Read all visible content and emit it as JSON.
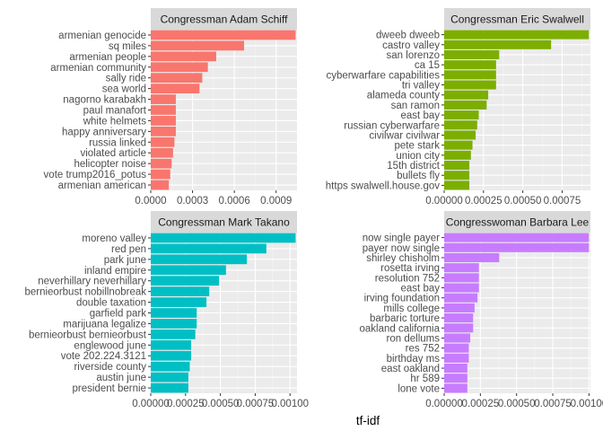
{
  "chart_data": {
    "type": "bar",
    "orientation": "horizontal",
    "facets": 4,
    "xlabel": "tf-idf",
    "grid": true,
    "panels": [
      {
        "title": "Congressman Adam Schiff",
        "color": "#F8766D",
        "xlim": [
          0,
          0.00105
        ],
        "ticks": [
          0,
          0.0003,
          0.0006,
          0.0009
        ],
        "tick_labels": [
          "0.0000",
          "0.0003",
          "0.0006",
          "0.0009"
        ],
        "categories": [
          "armenian genocide",
          "sq miles",
          "armenian people",
          "armenian community",
          "sally ride",
          "sea world",
          "nagorno karabakh",
          "paul manafort",
          "white helmets",
          "happy anniversary",
          "russia linked",
          "violated article",
          "helicopter noise",
          "vote trump2016_potus",
          "armenian american"
        ],
        "values": [
          0.00104,
          0.00067,
          0.00047,
          0.00041,
          0.00037,
          0.00035,
          0.00018,
          0.00018,
          0.00018,
          0.00018,
          0.00017,
          0.00016,
          0.00015,
          0.00014,
          0.00013
        ]
      },
      {
        "title": "Congressman Eric Swalwell",
        "color": "#7CAE00",
        "xlim": [
          0,
          0.00093
        ],
        "ticks": [
          0,
          0.00025,
          0.0005,
          0.00075
        ],
        "tick_labels": [
          "0.00000",
          "0.00025",
          "0.00050",
          "0.00075"
        ],
        "categories": [
          "dweeb dweeb",
          "castro valley",
          "san lorenzo",
          "ca 15",
          "cyberwarfare capabilities",
          "tri valley",
          "alameda county",
          "san ramon",
          "east bay",
          "russian cyberwarfare",
          "civilwar civilwar",
          "pete stark",
          "union city",
          "15th district",
          "bullets fly",
          "https swalwell.house.gov"
        ],
        "values": [
          0.00092,
          0.00068,
          0.00035,
          0.00033,
          0.00033,
          0.00033,
          0.00028,
          0.00027,
          0.00022,
          0.00021,
          0.0002,
          0.00018,
          0.00017,
          0.00016,
          0.00016,
          0.00016
        ]
      },
      {
        "title": "Congressman Mark Takano",
        "color": "#00BFC4",
        "xlim": [
          0,
          0.00105
        ],
        "ticks": [
          0,
          0.00025,
          0.0005,
          0.00075,
          0.001
        ],
        "tick_labels": [
          "0.00000",
          "0.00025",
          "0.00050",
          "0.00075",
          "0.00100"
        ],
        "categories": [
          "moreno valley",
          "red pen",
          "park june",
          "inland empire",
          "neverhillary neverhillary",
          "bernieorbust nobillnobreak",
          "double taxation",
          "garfield park",
          "marijuana legalize",
          "bernieorbust bernieorbust",
          "englewood june",
          "vote 202.224.3121",
          "riverside county",
          "austin june",
          "president bernie"
        ],
        "values": [
          0.00104,
          0.00083,
          0.00069,
          0.00054,
          0.00049,
          0.00042,
          0.0004,
          0.00033,
          0.00033,
          0.00032,
          0.00029,
          0.00029,
          0.00028,
          0.00027,
          0.00027
        ]
      },
      {
        "title": "Congresswoman Barbara Lee",
        "color": "#C77CFF",
        "xlim": [
          0,
          0.00101
        ],
        "ticks": [
          0,
          0.00025,
          0.0005,
          0.00075,
          0.001
        ],
        "tick_labels": [
          "0.00000",
          "0.00025",
          "0.00050",
          "0.00075",
          "0.00100"
        ],
        "categories": [
          "now single payer",
          "payer now single",
          "shirley chisholm",
          "rosetta irving",
          "resolution 752",
          "east bay",
          "irving foundation",
          "mills college",
          "barbaric torture",
          "oakland california",
          "ron dellums",
          "res 752",
          "birthday ms",
          "east oakland",
          "hr 589",
          "lone vote"
        ],
        "values": [
          0.001,
          0.001,
          0.00038,
          0.00024,
          0.00024,
          0.00024,
          0.00023,
          0.00021,
          0.0002,
          0.0002,
          0.00018,
          0.00017,
          0.00017,
          0.00016,
          0.00016,
          0.00016
        ]
      }
    ]
  }
}
